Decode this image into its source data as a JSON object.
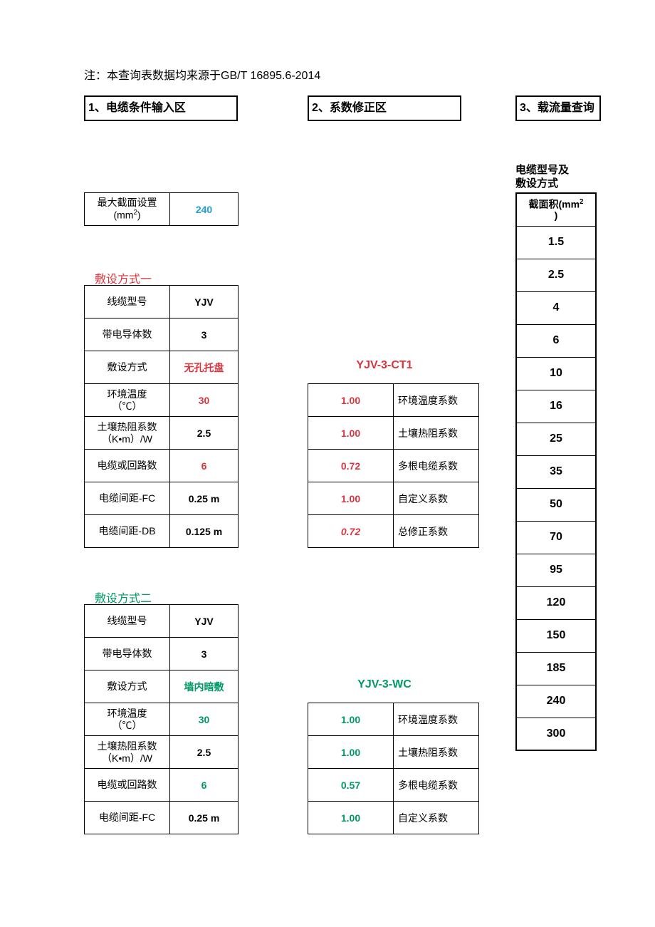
{
  "colors": {
    "accent_blue": "#1e9fd8",
    "accent_red": "#d9363e",
    "accent_green": "#009966",
    "border": "#000000",
    "bg": "#ffffff"
  },
  "note": "注：本查询表数据均来源于GB/T 16895.6-2014",
  "tabs": {
    "t1": "1、电缆条件输入区",
    "t2": "2、系数修正区",
    "t3": "3、载流量查询"
  },
  "max_section": {
    "label_l1": "最大截面设置",
    "label_l2": "(mm",
    "label_sup": "2",
    "label_l3": ")",
    "value": "240"
  },
  "method1": {
    "heading": "敷设方式一",
    "rows": [
      {
        "label": "线缆型号",
        "value": "YJV",
        "vcolor": "#000000"
      },
      {
        "label": "带电导体数",
        "value": "3",
        "vcolor": "#000000"
      },
      {
        "label": "敷设方式",
        "value": "无孔托盘",
        "vcolor": "#d9363e"
      },
      {
        "label": "环境温度\n（℃）",
        "value": "30",
        "vcolor": "#d9363e"
      },
      {
        "label": "土壤热阻系数\n（K•m）/W",
        "value": "2.5",
        "vcolor": "#000000"
      },
      {
        "label": "电缆或回路数",
        "value": "6",
        "vcolor": "#d9363e"
      },
      {
        "label": "电缆间距-FC",
        "value": "0.25 m",
        "vcolor": "#000000"
      },
      {
        "label": "电缆间距-DB",
        "value": "0.125 m",
        "vcolor": "#000000"
      }
    ],
    "coef_heading": "YJV-3-CT1",
    "coef_rows": [
      {
        "val": "1.00",
        "lab": "环境温度系数",
        "italic": false
      },
      {
        "val": "1.00",
        "lab": "土壤热阻系数",
        "italic": false
      },
      {
        "val": "0.72",
        "lab": "多根电缆系数",
        "italic": false
      },
      {
        "val": "1.00",
        "lab": "自定义系数",
        "italic": false
      },
      {
        "val": "0.72",
        "lab": "总修正系数",
        "italic": true
      }
    ],
    "coef_color": "#d9363e"
  },
  "method2": {
    "heading": "敷设方式二",
    "rows": [
      {
        "label": "线缆型号",
        "value": "YJV",
        "vcolor": "#000000"
      },
      {
        "label": "带电导体数",
        "value": "3",
        "vcolor": "#000000"
      },
      {
        "label": "敷设方式",
        "value": "墙内暗敷",
        "vcolor": "#009966"
      },
      {
        "label": "环境温度\n（℃）",
        "value": "30",
        "vcolor": "#009966"
      },
      {
        "label": "土壤热阻系数\n（K•m）/W",
        "value": "2.5",
        "vcolor": "#000000"
      },
      {
        "label": "电缆或回路数",
        "value": "6",
        "vcolor": "#009966"
      },
      {
        "label": "电缆间距-FC",
        "value": "0.25 m",
        "vcolor": "#000000"
      }
    ],
    "coef_heading": "YJV-3-WC",
    "coef_rows": [
      {
        "val": "1.00",
        "lab": "环境温度系数"
      },
      {
        "val": "1.00",
        "lab": "土壤热阻系数"
      },
      {
        "val": "0.57",
        "lab": "多根电缆系数"
      },
      {
        "val": "1.00",
        "lab": "自定义系数"
      }
    ],
    "coef_color": "#009966"
  },
  "right": {
    "head_l1": "电缆型号及",
    "head_l2": "敷设方式",
    "header_l1": "截面积(mm",
    "header_sup": "2",
    "header_l2": ")",
    "values": [
      "1.5",
      "2.5",
      "4",
      "6",
      "10",
      "16",
      "25",
      "35",
      "50",
      "70",
      "95",
      "120",
      "150",
      "185",
      "240",
      "300"
    ]
  }
}
